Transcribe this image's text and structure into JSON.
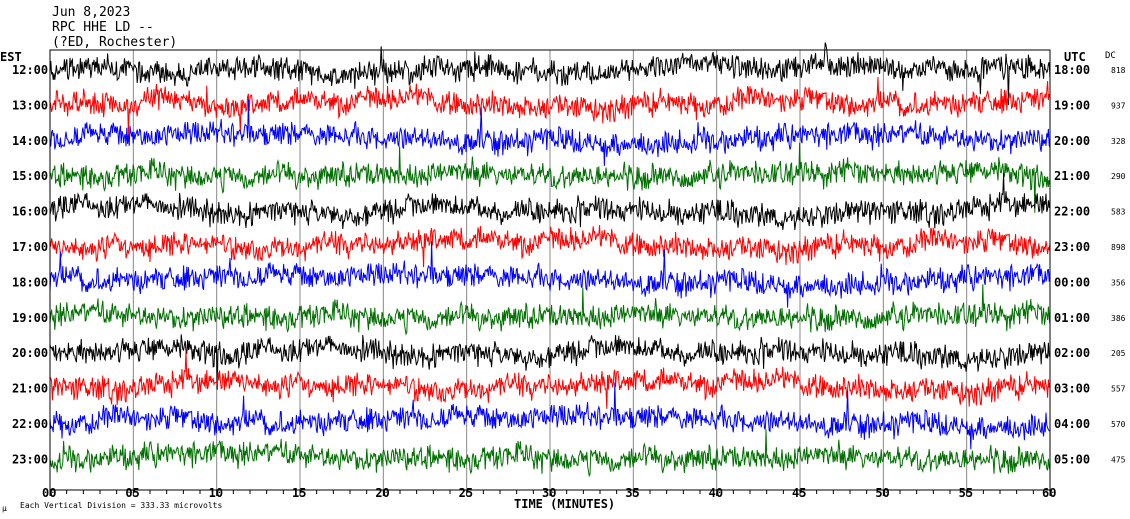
{
  "header": {
    "date": "Jun 8,2023",
    "station": "RPC HHE LD --",
    "location": "(?ED, Rochester)"
  },
  "left_label": "EST",
  "right_label": "UTC",
  "dc_label": "DC",
  "footer": {
    "scale": "Each Vertical Division =  333.33 microvolts",
    "mark": "µ"
  },
  "chart_data": {
    "type": "line",
    "xlabel": "TIME (MINUTES)",
    "xlim": [
      0,
      60
    ],
    "x_ticks": [
      "00",
      "05",
      "10",
      "15",
      "20",
      "25",
      "30",
      "35",
      "40",
      "45",
      "50",
      "55",
      "60"
    ],
    "colors": [
      "#000000",
      "#ff0000",
      "#0000ff",
      "#007000"
    ],
    "rows": [
      {
        "est": "12:00",
        "utc": "18:00",
        "dc": "818"
      },
      {
        "est": "13:00",
        "utc": "19:00",
        "dc": "937"
      },
      {
        "est": "14:00",
        "utc": "20:00",
        "dc": "328"
      },
      {
        "est": "15:00",
        "utc": "21:00",
        "dc": "290"
      },
      {
        "est": "16:00",
        "utc": "22:00",
        "dc": "583"
      },
      {
        "est": "17:00",
        "utc": "23:00",
        "dc": "898"
      },
      {
        "est": "18:00",
        "utc": "00:00",
        "dc": "356"
      },
      {
        "est": "19:00",
        "utc": "01:00",
        "dc": "386"
      },
      {
        "est": "20:00",
        "utc": "02:00",
        "dc": "205"
      },
      {
        "est": "21:00",
        "utc": "03:00",
        "dc": "557"
      },
      {
        "est": "22:00",
        "utc": "04:00",
        "dc": "570"
      },
      {
        "est": "23:00",
        "utc": "05:00",
        "dc": "475"
      }
    ]
  }
}
